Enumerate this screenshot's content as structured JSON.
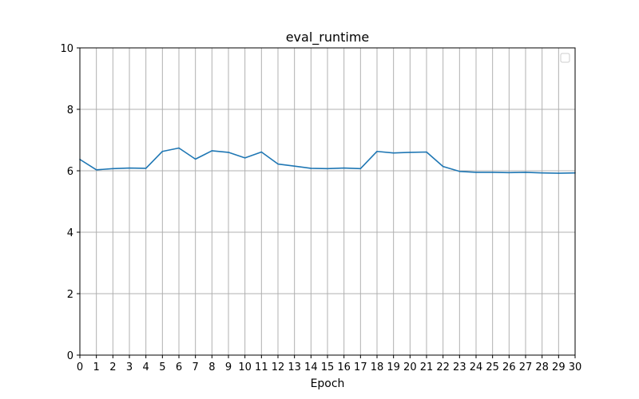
{
  "chart_data": {
    "type": "line",
    "title": "eval_runtime",
    "xlabel": "Epoch",
    "ylabel": "",
    "xlim": [
      0,
      30
    ],
    "ylim": [
      0,
      10
    ],
    "x_ticks": [
      0,
      1,
      2,
      3,
      4,
      5,
      6,
      7,
      8,
      9,
      10,
      11,
      12,
      13,
      14,
      15,
      16,
      17,
      18,
      19,
      20,
      21,
      22,
      23,
      24,
      25,
      26,
      27,
      28,
      29,
      30
    ],
    "y_ticks": [
      0,
      2,
      4,
      6,
      8,
      10
    ],
    "grid": true,
    "legend": {
      "placement": "top-right",
      "entries": []
    },
    "series": [
      {
        "color": "#1f77b4",
        "x": [
          0,
          1,
          2,
          3,
          4,
          5,
          6,
          7,
          8,
          9,
          10,
          11,
          12,
          13,
          14,
          15,
          16,
          17,
          18,
          19,
          20,
          21,
          22,
          23,
          24,
          25,
          26,
          27,
          28,
          29,
          30
        ],
        "y": [
          6.37,
          6.03,
          6.07,
          6.09,
          6.08,
          6.63,
          6.74,
          6.38,
          6.65,
          6.6,
          6.42,
          6.61,
          6.22,
          6.15,
          6.08,
          6.07,
          6.09,
          6.07,
          6.63,
          6.58,
          6.6,
          6.61,
          6.14,
          5.98,
          5.95,
          5.95,
          5.94,
          5.95,
          5.93,
          5.92,
          5.93
        ]
      }
    ]
  }
}
